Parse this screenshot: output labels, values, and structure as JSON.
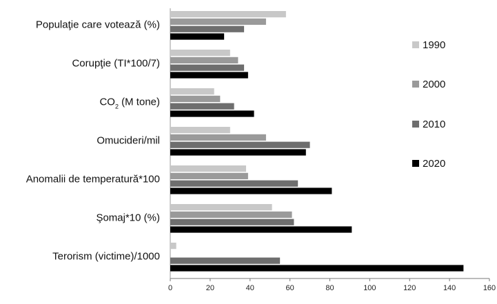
{
  "chart_data": {
    "type": "bar",
    "orientation": "horizontal",
    "categories": [
      "Populaţie care votează (%)",
      "Corupţie (TI*100/7)",
      "CO2 (M tone)",
      "Omucideri/mil",
      "Anomalii de temperatură*100",
      "Şomaj*10 (%)",
      "Terorism (victime)/1000"
    ],
    "co2_label": {
      "base": "CO",
      "sub": "2",
      "rest": " (M tone)"
    },
    "series": [
      {
        "name": "1990",
        "color": "#c8c8c8",
        "values": [
          58,
          30,
          22,
          30,
          38,
          51,
          3
        ]
      },
      {
        "name": "2000",
        "color": "#9a9a9a",
        "values": [
          48,
          34,
          25,
          48,
          39,
          61,
          0
        ]
      },
      {
        "name": "2010",
        "color": "#6e6e6e",
        "values": [
          37,
          37,
          32,
          70,
          64,
          62,
          55
        ]
      },
      {
        "name": "2020",
        "color": "#000000",
        "values": [
          27,
          39,
          42,
          68,
          81,
          91,
          147
        ]
      }
    ],
    "xlim": [
      0,
      160
    ],
    "xticks": [
      "0",
      "20",
      "40",
      "60",
      "80",
      "100",
      "120",
      "140",
      "160"
    ],
    "grid": false,
    "legend_position": "right"
  }
}
